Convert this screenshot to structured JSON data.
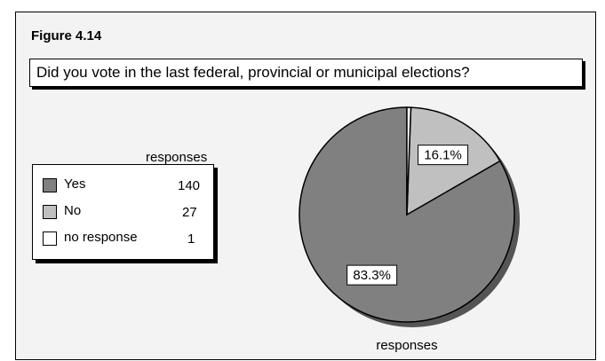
{
  "figure_label": "Figure 4.14",
  "question": "Did you vote in the last federal, provincial or municipal elections?",
  "legend": {
    "heading": "responses",
    "items": [
      {
        "label": "Yes",
        "value": "140",
        "color": "#808080"
      },
      {
        "label": "No",
        "value": "27",
        "color": "#c0c0c0"
      },
      {
        "label": "no response",
        "value": "1",
        "color": "#ffffff"
      }
    ]
  },
  "chart_data": {
    "type": "pie",
    "title": "Did you vote in the last federal, provincial or municipal elections?",
    "categories": [
      "Yes",
      "No",
      "no response"
    ],
    "values": [
      140,
      27,
      1
    ],
    "percent_labels": [
      "83.3%",
      "16.1%",
      ""
    ],
    "colors": [
      "#808080",
      "#c0c0c0",
      "#ffffff"
    ],
    "xlabel": "responses",
    "legend_position": "left"
  }
}
